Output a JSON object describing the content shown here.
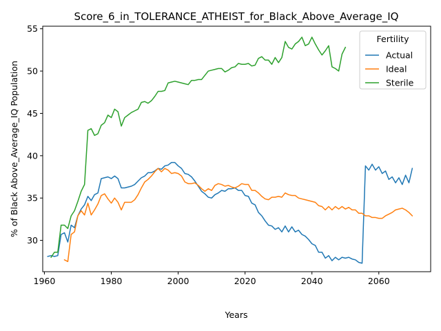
{
  "chart_data": {
    "type": "line",
    "title": "Score_6_in_TOLERANCE_ATHEIST_for_Black_Above_Average_IQ",
    "xlabel": "Years",
    "ylabel": "% of Black Above_Average_IQ Population",
    "xlim": [
      1959.5,
      2075.5
    ],
    "ylim": [
      26.3,
      55.3
    ],
    "xticks": [
      1960,
      1980,
      2000,
      2020,
      2040,
      2060
    ],
    "yticks": [
      30,
      35,
      40,
      45,
      50,
      55
    ],
    "grid": false,
    "legend": {
      "title": "Fertility",
      "placement": "upper-right"
    },
    "series": [
      {
        "name": "Actual",
        "color": "#1f77b4",
        "x": [
          1961,
          1962,
          1963,
          1964,
          1965,
          1966,
          1967,
          1968,
          1969,
          1970,
          1971,
          1972,
          1973,
          1974,
          1975,
          1976,
          1977,
          1978,
          1979,
          1980,
          1981,
          1982,
          1983,
          1984,
          1985,
          1986,
          1987,
          1988,
          1989,
          1990,
          1991,
          1992,
          1993,
          1994,
          1995,
          1996,
          1997,
          1998,
          1999,
          2000,
          2001,
          2002,
          2003,
          2004,
          2005,
          2006,
          2007,
          2008,
          2009,
          2010,
          2011,
          2012,
          2013,
          2014,
          2015,
          2016,
          2017,
          2018,
          2019,
          2020,
          2021,
          2022,
          2023,
          2024,
          2025,
          2026,
          2027,
          2028,
          2029,
          2030,
          2031,
          2032,
          2033,
          2034,
          2035,
          2036,
          2037,
          2038,
          2039,
          2040,
          2041,
          2042,
          2043,
          2044,
          2045,
          2046,
          2047,
          2048,
          2049,
          2050,
          2051,
          2052,
          2053,
          2054,
          2055,
          2056,
          2057,
          2058,
          2059,
          2060,
          2061,
          2062,
          2063,
          2064,
          2065,
          2066,
          2067,
          2068,
          2069,
          2070
        ],
        "y": [
          28.1,
          28.2,
          28.1,
          28.2,
          30.7,
          30.9,
          29.8,
          31.8,
          31.5,
          32.9,
          33.7,
          34.2,
          35.2,
          34.7,
          35.4,
          35.6,
          37.3,
          37.4,
          37.5,
          37.3,
          37.6,
          37.3,
          36.2,
          36.2,
          36.3,
          36.4,
          36.6,
          37.0,
          37.4,
          37.6,
          38.0,
          38.0,
          38.2,
          38.5,
          38.4,
          38.8,
          38.9,
          39.2,
          39.2,
          38.8,
          38.5,
          37.9,
          37.8,
          37.5,
          37.0,
          36.4,
          35.8,
          35.5,
          35.1,
          35.0,
          35.4,
          35.6,
          35.9,
          35.8,
          36.1,
          36.1,
          36.2,
          35.9,
          35.9,
          35.3,
          35.2,
          34.4,
          34.2,
          33.3,
          32.9,
          32.3,
          31.8,
          31.7,
          31.3,
          31.5,
          31.0,
          31.7,
          31.0,
          31.6,
          31.0,
          31.2,
          30.7,
          30.5,
          30.1,
          29.6,
          29.4,
          28.6,
          28.6,
          27.9,
          28.2,
          27.6,
          28.0,
          27.7,
          28.0,
          27.9,
          28.0,
          27.8,
          27.7,
          27.4,
          27.3,
          38.8,
          38.3,
          39.0,
          38.3,
          38.7,
          37.9,
          38.2,
          37.2,
          37.5,
          36.8,
          37.4,
          36.6,
          37.7,
          36.8,
          38.5
        ]
      },
      {
        "name": "Ideal",
        "color": "#ff7f0e",
        "x": [
          1966,
          1967,
          1968,
          1969,
          1970,
          1971,
          1972,
          1973,
          1974,
          1975,
          1976,
          1977,
          1978,
          1979,
          1980,
          1981,
          1982,
          1983,
          1984,
          1985,
          1986,
          1987,
          1988,
          1989,
          1990,
          1991,
          1992,
          1993,
          1994,
          1995,
          1996,
          1997,
          1998,
          1999,
          2000,
          2001,
          2002,
          2003,
          2004,
          2005,
          2006,
          2007,
          2008,
          2009,
          2010,
          2011,
          2012,
          2013,
          2014,
          2015,
          2016,
          2017,
          2018,
          2019,
          2020,
          2021,
          2022,
          2023,
          2024,
          2025,
          2026,
          2027,
          2028,
          2029,
          2030,
          2031,
          2032,
          2033,
          2034,
          2035,
          2036,
          2037,
          2038,
          2039,
          2040,
          2041,
          2042,
          2043,
          2044,
          2045,
          2046,
          2047,
          2048,
          2049,
          2050,
          2051,
          2052,
          2053,
          2054,
          2055,
          2056,
          2057,
          2058,
          2059,
          2060,
          2061,
          2062,
          2063,
          2064,
          2065,
          2066,
          2067,
          2068,
          2069,
          2070
        ],
        "y": [
          27.7,
          27.5,
          30.7,
          31.0,
          32.9,
          33.5,
          33.0,
          34.4,
          33.0,
          33.6,
          34.3,
          35.3,
          35.5,
          34.9,
          34.4,
          35.0,
          34.5,
          33.6,
          34.5,
          34.5,
          34.5,
          34.8,
          35.4,
          36.2,
          36.9,
          37.2,
          37.6,
          38.1,
          38.5,
          38.1,
          38.5,
          38.3,
          37.9,
          38.0,
          37.9,
          37.6,
          36.9,
          36.7,
          36.7,
          36.8,
          36.5,
          36.1,
          35.8,
          36.1,
          35.9,
          36.5,
          36.7,
          36.6,
          36.4,
          36.5,
          36.3,
          36.2,
          36.4,
          36.7,
          36.6,
          36.6,
          35.9,
          35.9,
          35.6,
          35.2,
          34.9,
          34.8,
          35.1,
          35.1,
          35.2,
          35.1,
          35.6,
          35.4,
          35.3,
          35.3,
          35.0,
          34.9,
          34.8,
          34.7,
          34.6,
          34.5,
          34.1,
          34.0,
          33.6,
          34.0,
          33.6,
          34.0,
          33.7,
          34.0,
          33.7,
          33.9,
          33.6,
          33.6,
          33.2,
          33.2,
          32.9,
          32.9,
          32.7,
          32.7,
          32.6,
          32.6,
          32.9,
          33.1,
          33.3,
          33.6,
          33.7,
          33.8,
          33.6,
          33.3,
          32.9
        ]
      },
      {
        "name": "Sterile",
        "color": "#2ca02c",
        "x": [
          1962,
          1963,
          1964,
          1965,
          1966,
          1967,
          1968,
          1969,
          1970,
          1971,
          1972,
          1973,
          1974,
          1975,
          1976,
          1977,
          1978,
          1979,
          1980,
          1981,
          1982,
          1983,
          1984,
          1985,
          1986,
          1987,
          1988,
          1989,
          1990,
          1991,
          1992,
          1993,
          1994,
          1995,
          1996,
          1997,
          1998,
          1999,
          2000,
          2001,
          2002,
          2003,
          2004,
          2005,
          2006,
          2007,
          2008,
          2009,
          2010,
          2011,
          2012,
          2013,
          2014,
          2015,
          2016,
          2017,
          2018,
          2019,
          2020,
          2021,
          2022,
          2023,
          2024,
          2025,
          2026,
          2027,
          2028,
          2029,
          2030,
          2031,
          2032,
          2033,
          2034,
          2035,
          2036,
          2037,
          2038,
          2039,
          2040,
          2041,
          2042,
          2043,
          2044,
          2045,
          2046,
          2047,
          2048,
          2049,
          2050
        ],
        "y": [
          28.0,
          28.6,
          28.6,
          31.8,
          31.8,
          31.4,
          32.9,
          33.5,
          34.6,
          35.8,
          36.6,
          43.0,
          43.2,
          42.4,
          42.6,
          43.6,
          43.9,
          44.8,
          44.5,
          45.5,
          45.2,
          43.5,
          44.5,
          44.8,
          45.1,
          45.3,
          45.5,
          46.3,
          46.4,
          46.2,
          46.5,
          47.0,
          47.6,
          47.6,
          47.7,
          48.6,
          48.7,
          48.8,
          48.7,
          48.6,
          48.5,
          48.4,
          48.9,
          48.9,
          49.0,
          49.0,
          49.5,
          50.0,
          50.1,
          50.2,
          50.3,
          50.3,
          49.9,
          50.1,
          50.4,
          50.5,
          50.9,
          50.8,
          50.8,
          50.9,
          50.6,
          50.7,
          51.5,
          51.7,
          51.3,
          51.3,
          50.8,
          51.6,
          51.0,
          51.6,
          53.5,
          52.8,
          52.6,
          53.2,
          53.5,
          54.0,
          53.0,
          53.2,
          54.0,
          53.2,
          52.5,
          51.9,
          52.4,
          53.0,
          50.5,
          50.3,
          50.0,
          52.0,
          52.8
        ]
      }
    ]
  }
}
